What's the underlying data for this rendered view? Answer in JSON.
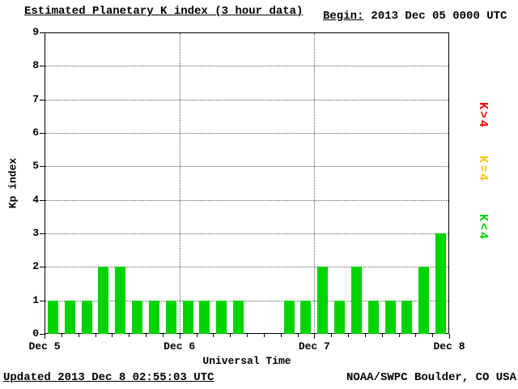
{
  "header": {
    "title": "Estimated Planetary K index (3 hour data)",
    "begin_label": "Begin:",
    "begin_value": "2013 Dec 05 0000 UTC"
  },
  "footer": {
    "updated": "Updated 2013 Dec  8 02:55:03 UTC",
    "credit": "NOAA/SWPC Boulder, CO USA"
  },
  "chart_data": {
    "type": "bar",
    "title": "Estimated Planetary K index (3 hour data)",
    "xlabel": "Universal Time",
    "ylabel": "Kp index",
    "ylim": [
      0,
      9
    ],
    "y_ticks": [
      0,
      1,
      2,
      3,
      4,
      5,
      6,
      7,
      8,
      9
    ],
    "x_tick_labels": [
      "Dec 5",
      "Dec 6",
      "Dec 7",
      "Dec 8"
    ],
    "bin_hours": 3,
    "begin": "2013 Dec 05 0000 UTC",
    "bar_color": "#00d400",
    "grid": true,
    "legend_position": "right",
    "values": [
      1,
      1,
      1,
      2,
      2,
      1,
      1,
      1,
      1,
      1,
      1,
      1,
      null,
      null,
      1,
      1,
      2,
      1,
      2,
      1,
      1,
      1,
      2,
      3
    ],
    "legend": [
      {
        "label": "K>4",
        "color": "#ff0000"
      },
      {
        "label": "K=4",
        "color": "#ffc400"
      },
      {
        "label": "K<4",
        "color": "#00d400"
      }
    ]
  }
}
